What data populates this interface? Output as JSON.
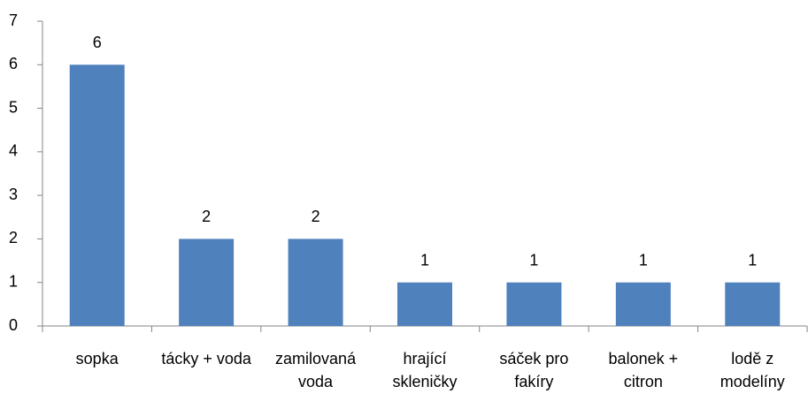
{
  "chart_data": {
    "type": "bar",
    "categories": [
      "sopka",
      "tácky + voda",
      "zamilovaná voda",
      "hrající skleničky",
      "sáček pro fakíry",
      "balonek + citron",
      "lodě z modelíny"
    ],
    "values": [
      6,
      2,
      2,
      1,
      1,
      1,
      1
    ],
    "color": "#4f81bd",
    "ylim": [
      0,
      7
    ],
    "yticks": [
      0,
      1,
      2,
      3,
      4,
      5,
      6,
      7
    ],
    "grid": false,
    "data_labels": true
  }
}
